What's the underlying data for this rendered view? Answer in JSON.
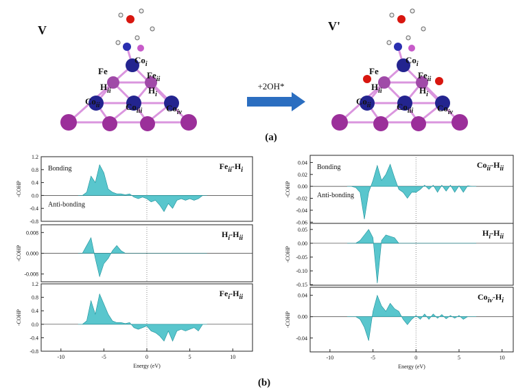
{
  "diagram": {
    "left_title": "V",
    "right_title": "V'",
    "arrow_label": "+2OH*",
    "panel_a": "(a)",
    "panel_b": "(b)",
    "left_labels": [
      [
        "Co",
        "i"
      ],
      [
        "Fe"
      ],
      [
        "Fe",
        "ii"
      ],
      [
        "H",
        "ii"
      ],
      [
        "H",
        "i"
      ],
      [
        "Co",
        "ii"
      ],
      [
        "Co",
        "iii"
      ],
      [
        "Co",
        "iv"
      ]
    ],
    "right_labels": [
      [
        "Co",
        "i"
      ],
      [
        "Fe"
      ],
      [
        "Fe",
        "ii"
      ],
      [
        "H",
        "ii"
      ],
      [
        "H",
        "i"
      ],
      [
        "Co",
        "ii"
      ],
      [
        "Co",
        "iii"
      ],
      [
        "Co",
        "iv"
      ]
    ]
  },
  "chart_data": [
    {
      "type": "area",
      "title": [
        "Fe",
        "ii",
        "-H",
        "i"
      ],
      "ylabel": "-COHP",
      "annotations": [
        "Bonding",
        "Anti-bonding"
      ],
      "color": "#3cbcc4",
      "x": [
        -8,
        -7.5,
        -7,
        -6.5,
        -6,
        -5.5,
        -5,
        -4.5,
        -4,
        -3.5,
        -3,
        -2.5,
        -2,
        -1.5,
        -1,
        -0.5,
        0,
        0.5,
        1,
        1.5,
        2,
        2.5,
        3,
        3.5,
        4,
        4.5,
        5,
        5.5,
        6,
        6.5,
        7
      ],
      "values": [
        0,
        0,
        0.1,
        0.6,
        0.4,
        0.95,
        0.7,
        0.2,
        0.1,
        0.05,
        0.05,
        0.02,
        0.05,
        -0.05,
        -0.1,
        -0.05,
        -0.1,
        -0.2,
        -0.15,
        -0.3,
        -0.5,
        -0.25,
        -0.4,
        -0.15,
        -0.1,
        -0.15,
        -0.1,
        -0.15,
        -0.1,
        0,
        0
      ],
      "xlim": [
        -12.3,
        12.3
      ],
      "ylim": [
        -0.8,
        1.2
      ],
      "yticks": [
        1.2,
        0.8,
        0.4,
        {
          "value": 0,
          "label": "0.0"
        },
        -0.4,
        -0.8
      ]
    },
    {
      "type": "area",
      "title": [
        "H",
        "i",
        "-H",
        "ii"
      ],
      "ylabel": "-COHP",
      "color": "#3cbcc4",
      "x": [
        -8,
        -7.5,
        -7,
        -6.5,
        -6,
        -5.5,
        -5,
        -4.5,
        -4,
        -3.5,
        -3,
        -2.5,
        -2,
        -1.5,
        -1,
        -0.5,
        0,
        0.5,
        1,
        1.5,
        2,
        2.5,
        3,
        3.5,
        4,
        4.5,
        5,
        5.5,
        6,
        6.5,
        7
      ],
      "values": [
        0,
        0,
        0.003,
        0.006,
        -0.002,
        -0.009,
        -0.004,
        -0.002,
        0.001,
        0.003,
        0.001,
        0,
        0,
        0,
        0,
        0,
        0,
        0,
        0,
        0,
        0,
        0,
        0,
        0,
        0,
        0,
        0,
        0,
        0,
        0,
        0
      ],
      "xlim": [
        -12.3,
        12.3
      ],
      "ylim": [
        -0.011,
        0.011
      ],
      "yticks": [
        0.008,
        {
          "value": 0,
          "label": "0.000"
        },
        -0.008
      ]
    },
    {
      "type": "area",
      "title": [
        "Fe",
        "i",
        "-H",
        "ii"
      ],
      "ylabel": "-COHP",
      "xlabel": "Energy (eV)",
      "color": "#3cbcc4",
      "x": [
        -8,
        -7.5,
        -7,
        -6.5,
        -6,
        -5.5,
        -5,
        -4.5,
        -4,
        -3.5,
        -3,
        -2.5,
        -2,
        -1.5,
        -1,
        -0.5,
        0,
        0.5,
        1,
        1.5,
        2,
        2.5,
        3,
        3.5,
        4,
        4.5,
        5,
        5.5,
        6,
        6.5,
        7
      ],
      "values": [
        0,
        0,
        0.1,
        0.7,
        0.3,
        0.9,
        0.6,
        0.3,
        0.1,
        0.05,
        0.05,
        0.02,
        0.05,
        -0.1,
        -0.15,
        -0.1,
        -0.05,
        -0.2,
        -0.25,
        -0.35,
        -0.5,
        -0.2,
        -0.5,
        -0.2,
        -0.15,
        -0.2,
        -0.15,
        -0.1,
        -0.2,
        0,
        0
      ],
      "xlim": [
        -12.3,
        12.3
      ],
      "ylim": [
        -0.8,
        1.2
      ],
      "yticks": [
        1.2,
        0.8,
        0.4,
        {
          "value": 0,
          "label": "0.0"
        },
        -0.4,
        -0.8
      ],
      "xticks": [
        -10,
        -5,
        0,
        5,
        10
      ]
    },
    {
      "type": "area",
      "title": [
        "Co",
        "ii",
        "-H",
        "ii"
      ],
      "ylabel": "-COHP",
      "annotations": [
        "Bonding",
        "Anti-bonding"
      ],
      "color": "#3cbcc4",
      "x": [
        -8,
        -7.5,
        -7,
        -6.5,
        -6,
        -5.5,
        -5,
        -4.5,
        -4,
        -3.5,
        -3,
        -2.5,
        -2,
        -1.5,
        -1,
        -0.5,
        0,
        0.5,
        1,
        1.5,
        2,
        2.5,
        3,
        3.5,
        4,
        4.5,
        5,
        5.5,
        6,
        6.5,
        7
      ],
      "values": [
        0,
        0,
        -0.002,
        -0.01,
        -0.055,
        -0.01,
        0.01,
        0.035,
        0.01,
        0.02,
        0.037,
        0.015,
        -0.005,
        -0.01,
        -0.02,
        -0.01,
        -0.01,
        -0.005,
        0.002,
        -0.005,
        0.002,
        -0.01,
        0.002,
        -0.008,
        0.002,
        -0.01,
        0.001,
        -0.01,
        0.001,
        0,
        0
      ],
      "xlim": [
        -12.3,
        11.3
      ],
      "ylim": [
        -0.062,
        0.052
      ],
      "yticks": [
        0.04,
        0.02,
        {
          "value": 0,
          "label": "0.00"
        },
        -0.02,
        -0.04,
        -0.06
      ]
    },
    {
      "type": "area",
      "title": [
        "H",
        "i",
        "-H",
        "ii"
      ],
      "ylabel": "-COHP",
      "color": "#3cbcc4",
      "x": [
        -8,
        -7.5,
        -7,
        -6.5,
        -6,
        -5.5,
        -5,
        -4.5,
        -4,
        -3.5,
        -3,
        -2.5,
        -2,
        -1.5,
        -1,
        -0.5,
        0,
        0.5,
        1,
        1.5,
        2,
        2.5,
        3,
        3.5,
        4,
        4.5,
        5,
        5.5,
        6,
        6.5,
        7
      ],
      "values": [
        0,
        0,
        0,
        0.01,
        0.03,
        0.05,
        0.02,
        -0.145,
        0.01,
        0.03,
        0.025,
        0.02,
        0,
        0,
        0,
        0,
        0,
        0,
        0,
        0,
        0,
        0,
        0,
        0,
        0,
        0,
        0,
        0,
        0,
        0,
        0
      ],
      "xlim": [
        -12.3,
        11.3
      ],
      "ylim": [
        -0.152,
        0.072
      ],
      "yticks": [
        0.05,
        {
          "value": 0,
          "label": "0.00"
        },
        -0.05,
        {
          "value": -0.1,
          "label": "-0.10"
        },
        -0.15
      ]
    },
    {
      "type": "area",
      "title": [
        "Co",
        "iv",
        "-H",
        "i"
      ],
      "ylabel": "-COHP",
      "xlabel": "Energy (eV)",
      "color": "#3cbcc4",
      "x": [
        -8,
        -7.5,
        -7,
        -6.5,
        -6,
        -5.5,
        -5,
        -4.5,
        -4,
        -3.5,
        -3,
        -2.5,
        -2,
        -1.5,
        -1,
        -0.5,
        0,
        0.5,
        1,
        1.5,
        2,
        2.5,
        3,
        3.5,
        4,
        4.5,
        5,
        5.5,
        6,
        6.5,
        7
      ],
      "values": [
        0,
        0,
        0,
        -0.005,
        -0.02,
        -0.045,
        0.01,
        0.04,
        0.02,
        0.01,
        0.025,
        0.015,
        0.01,
        -0.005,
        -0.015,
        -0.005,
        0.002,
        -0.005,
        0.005,
        -0.005,
        0.005,
        -0.003,
        0.004,
        -0.004,
        0.002,
        -0.003,
        0.002,
        -0.005,
        0,
        0,
        0
      ],
      "xlim": [
        -12.3,
        11.3
      ],
      "ylim": [
        -0.066,
        0.055
      ],
      "yticks": [
        0.04,
        {
          "value": 0,
          "label": "0.00"
        },
        -0.04
      ],
      "xticks": [
        -10,
        -5,
        0,
        5,
        10
      ]
    }
  ]
}
